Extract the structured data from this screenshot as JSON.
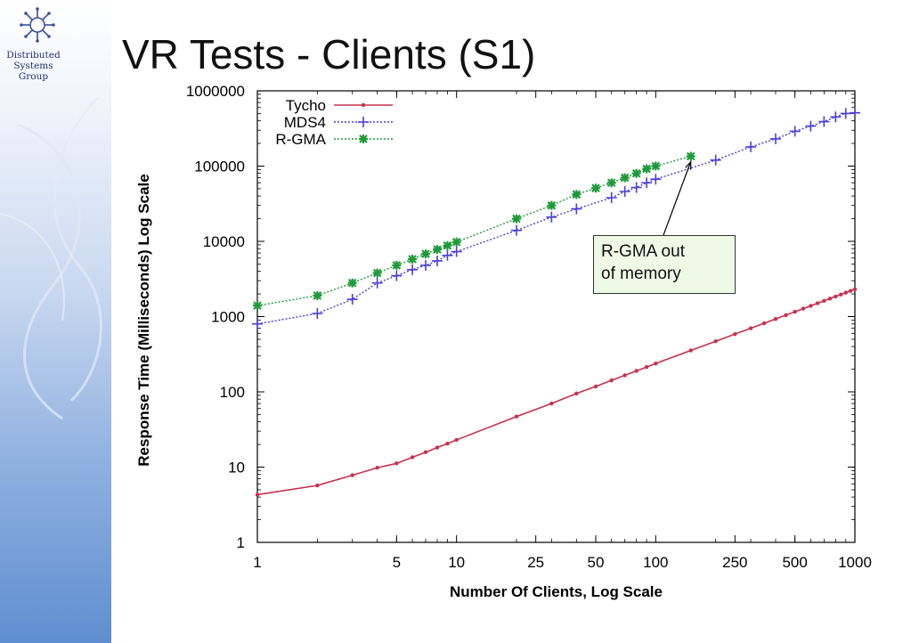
{
  "sidebar": {
    "org_lines": [
      "Distributed",
      "Systems",
      "Group"
    ]
  },
  "slide": {
    "title": "VR Tests - Clients (S1)"
  },
  "annotation": {
    "lines": [
      "R-GMA out",
      "of memory"
    ],
    "points_to": {
      "series": "R-GMA",
      "x": 150,
      "y": 135000
    }
  },
  "colors": {
    "Tycho": "#c8304e",
    "MDS4": "#4b3fd6",
    "R-GMA": "#1e9a3a",
    "annotation_bg": "#eefae6"
  },
  "chart_data": {
    "type": "line",
    "title": "",
    "xlabel": "Number Of Clients, Log Scale",
    "ylabel": "Response Time (Milliseconds) Log Scale",
    "xscale": "log",
    "yscale": "log",
    "xlim": [
      1,
      1000
    ],
    "ylim": [
      1,
      1000000
    ],
    "x_ticks": [
      1,
      5,
      10,
      25,
      50,
      100,
      250,
      500,
      1000
    ],
    "x_tick_labels": [
      "1",
      "5",
      "10",
      "25",
      "50",
      "100",
      "250",
      "500",
      "1000"
    ],
    "y_ticks": [
      1,
      10,
      100,
      1000,
      10000,
      100000,
      1000000
    ],
    "y_tick_labels": [
      "1",
      "10",
      "100",
      "1000",
      "10000",
      "100000",
      "1000000"
    ],
    "grid": false,
    "legend_position": "top-left",
    "series": [
      {
        "name": "Tycho",
        "marker": "dot",
        "line": "solid",
        "points": [
          [
            1,
            4.3
          ],
          [
            2,
            5.7
          ],
          [
            3,
            7.8
          ],
          [
            4,
            9.8
          ],
          [
            5,
            11.2
          ],
          [
            6,
            13.5
          ],
          [
            7,
            15.8
          ],
          [
            8,
            18.2
          ],
          [
            9,
            20.5
          ],
          [
            10,
            23
          ],
          [
            20,
            47
          ],
          [
            30,
            70
          ],
          [
            40,
            95
          ],
          [
            50,
            118
          ],
          [
            60,
            142
          ],
          [
            70,
            166
          ],
          [
            80,
            190
          ],
          [
            90,
            214
          ],
          [
            100,
            238
          ],
          [
            150,
            355
          ],
          [
            200,
            470
          ],
          [
            250,
            585
          ],
          [
            300,
            700
          ],
          [
            350,
            815
          ],
          [
            400,
            930
          ],
          [
            450,
            1045
          ],
          [
            500,
            1160
          ],
          [
            550,
            1275
          ],
          [
            600,
            1390
          ],
          [
            650,
            1505
          ],
          [
            700,
            1620
          ],
          [
            750,
            1735
          ],
          [
            800,
            1850
          ],
          [
            850,
            1965
          ],
          [
            900,
            2080
          ],
          [
            950,
            2195
          ],
          [
            1000,
            2310
          ]
        ]
      },
      {
        "name": "MDS4",
        "marker": "plus",
        "line": "dotted",
        "points": [
          [
            1,
            800
          ],
          [
            2,
            1100
          ],
          [
            3,
            1700
          ],
          [
            4,
            2800
          ],
          [
            5,
            3500
          ],
          [
            6,
            4200
          ],
          [
            7,
            4800
          ],
          [
            8,
            5500
          ],
          [
            9,
            6500
          ],
          [
            10,
            7300
          ],
          [
            20,
            14000
          ],
          [
            30,
            21000
          ],
          [
            40,
            27000
          ],
          [
            60,
            38000
          ],
          [
            70,
            46000
          ],
          [
            80,
            52000
          ],
          [
            90,
            60000
          ],
          [
            100,
            67000
          ],
          [
            200,
            120000
          ],
          [
            300,
            180000
          ],
          [
            400,
            230000
          ],
          [
            500,
            290000
          ],
          [
            600,
            340000
          ],
          [
            700,
            390000
          ],
          [
            800,
            450000
          ],
          [
            900,
            500000
          ],
          [
            1000,
            510000
          ]
        ]
      },
      {
        "name": "R-GMA",
        "marker": "star",
        "line": "dotted",
        "points": [
          [
            1,
            1400
          ],
          [
            2,
            1900
          ],
          [
            3,
            2800
          ],
          [
            4,
            3800
          ],
          [
            5,
            4800
          ],
          [
            6,
            5800
          ],
          [
            7,
            6800
          ],
          [
            8,
            7800
          ],
          [
            9,
            8800
          ],
          [
            10,
            9800
          ],
          [
            20,
            20000
          ],
          [
            30,
            30000
          ],
          [
            40,
            42000
          ],
          [
            50,
            51000
          ],
          [
            60,
            60000
          ],
          [
            70,
            70000
          ],
          [
            80,
            80000
          ],
          [
            90,
            92000
          ],
          [
            100,
            100000
          ],
          [
            150,
            135000
          ]
        ]
      }
    ]
  }
}
